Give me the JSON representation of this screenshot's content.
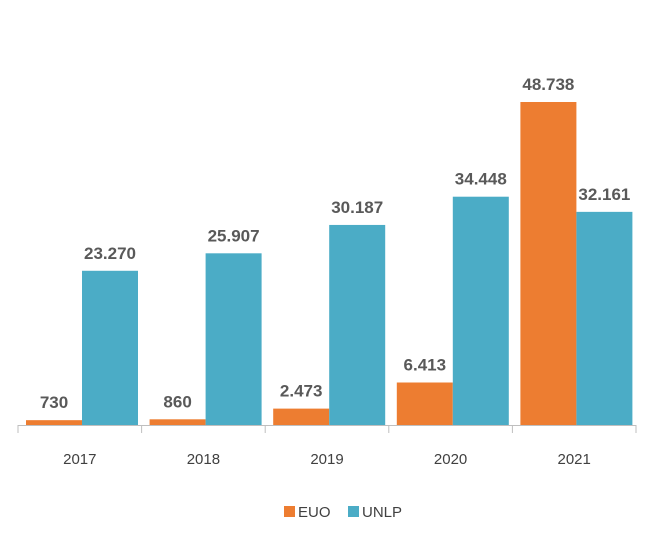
{
  "chart_data": {
    "type": "bar",
    "categories": [
      "2017",
      "2018",
      "2019",
      "2020",
      "2021"
    ],
    "series": [
      {
        "name": "EUO",
        "color": "#ED7D31",
        "values": [
          730,
          860,
          2473,
          6413,
          48738
        ],
        "labels": [
          "730",
          "860",
          "2.473",
          "6.413",
          "48.738"
        ]
      },
      {
        "name": "UNLP",
        "color": "#4BACC6",
        "values": [
          23270,
          25907,
          30187,
          34448,
          32161
        ],
        "labels": [
          "23.270",
          "25.907",
          "30.187",
          "34.448",
          "32.161"
        ]
      }
    ],
    "ylim": [
      0,
      48738
    ],
    "grid": false,
    "legend_position": "bottom"
  }
}
